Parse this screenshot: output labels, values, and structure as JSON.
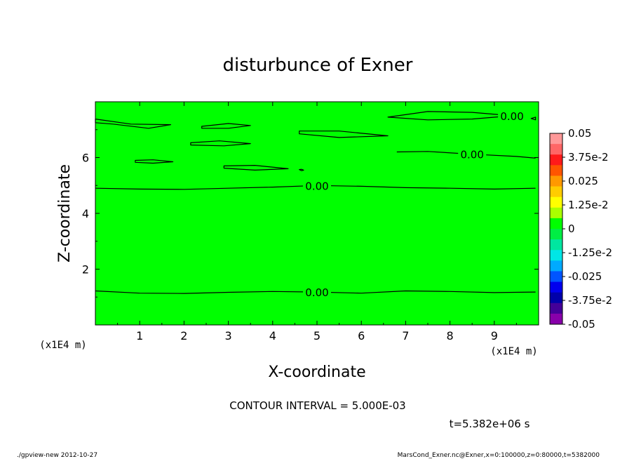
{
  "chart_data": {
    "type": "contour",
    "title": "disturbunce of Exner",
    "xlabel": "X-coordinate",
    "ylabel": "Z-coordinate",
    "x_unit_left": "(x1E4 m)",
    "x_unit_right": "(x1E4 m)",
    "xlim": [
      0,
      10
    ],
    "ylim": [
      0,
      8
    ],
    "x_ticks": [
      "1",
      "2",
      "3",
      "4",
      "5",
      "6",
      "7",
      "8",
      "9"
    ],
    "y_ticks": [
      "2",
      "4",
      "6"
    ],
    "fill_color": "#00ff00",
    "contour_label": "0.00",
    "contours": [
      {
        "label": "0.00",
        "labeled": true,
        "points": [
          [
            0,
            1.22
          ],
          [
            1,
            1.14
          ],
          [
            2,
            1.13
          ],
          [
            3,
            1.17
          ],
          [
            4,
            1.2
          ],
          [
            5,
            1.18
          ],
          [
            6,
            1.14
          ],
          [
            7,
            1.22
          ],
          [
            8,
            1.2
          ],
          [
            9,
            1.16
          ],
          [
            9.93,
            1.18
          ]
        ]
      },
      {
        "label": "0.00",
        "labeled": true,
        "points": [
          [
            0,
            4.9
          ],
          [
            1,
            4.87
          ],
          [
            2,
            4.86
          ],
          [
            3,
            4.9
          ],
          [
            4,
            4.94
          ],
          [
            5,
            5.0
          ],
          [
            6,
            4.97
          ],
          [
            7,
            4.92
          ],
          [
            8,
            4.9
          ],
          [
            9,
            4.87
          ],
          [
            9.93,
            4.9
          ]
        ]
      },
      {
        "label": "0.00",
        "labeled": true,
        "points": [
          [
            6.8,
            6.2
          ],
          [
            7.5,
            6.22
          ],
          [
            8.5,
            6.12
          ],
          [
            9.5,
            6.04
          ],
          [
            9.93,
            5.98
          ]
        ]
      },
      {
        "label": "0.00",
        "labeled": true,
        "closed": true,
        "points": [
          [
            6.6,
            7.45
          ],
          [
            7.5,
            7.65
          ],
          [
            8.5,
            7.62
          ],
          [
            9.4,
            7.5
          ],
          [
            8.5,
            7.38
          ],
          [
            7.5,
            7.35
          ]
        ]
      },
      {
        "closed": true,
        "points": [
          [
            0,
            7.38
          ],
          [
            0.8,
            7.2
          ],
          [
            1.7,
            7.18
          ],
          [
            1.2,
            7.05
          ],
          [
            0.4,
            7.2
          ],
          [
            0,
            7.25
          ]
        ]
      },
      {
        "closed": true,
        "points": [
          [
            2.4,
            7.12
          ],
          [
            3.0,
            7.22
          ],
          [
            3.5,
            7.15
          ],
          [
            3.0,
            7.05
          ],
          [
            2.4,
            7.05
          ]
        ]
      },
      {
        "closed": true,
        "points": [
          [
            2.15,
            6.53
          ],
          [
            2.8,
            6.6
          ],
          [
            3.5,
            6.5
          ],
          [
            2.9,
            6.42
          ],
          [
            2.15,
            6.45
          ]
        ]
      },
      {
        "closed": true,
        "points": [
          [
            4.6,
            6.95
          ],
          [
            5.5,
            6.95
          ],
          [
            6.6,
            6.78
          ],
          [
            5.5,
            6.72
          ],
          [
            4.6,
            6.85
          ]
        ]
      },
      {
        "closed": true,
        "points": [
          [
            0.9,
            5.9
          ],
          [
            1.3,
            5.92
          ],
          [
            1.75,
            5.85
          ],
          [
            1.3,
            5.8
          ],
          [
            0.9,
            5.83
          ]
        ]
      },
      {
        "closed": true,
        "points": [
          [
            2.9,
            5.7
          ],
          [
            3.6,
            5.72
          ],
          [
            4.35,
            5.6
          ],
          [
            3.6,
            5.55
          ],
          [
            2.9,
            5.62
          ]
        ]
      },
      {
        "closed": true,
        "points": [
          [
            4.6,
            5.57
          ],
          [
            4.65,
            5.58
          ],
          [
            4.7,
            5.55
          ],
          [
            4.65,
            5.53
          ]
        ]
      },
      {
        "closed": true,
        "points": [
          [
            9.83,
            7.4
          ],
          [
            9.93,
            7.45
          ],
          [
            9.93,
            7.35
          ]
        ]
      }
    ],
    "colorbar": {
      "labels": [
        "0.05",
        "3.75e-2",
        "0.025",
        "1.25e-2",
        "0",
        "-1.25e-2",
        "-0.025",
        "-3.75e-2",
        "-0.05"
      ],
      "colors": [
        "#ff9999",
        "#ff6666",
        "#ff1a1a",
        "#ff5500",
        "#ff9900",
        "#ffcc00",
        "#ffff00",
        "#aaff00",
        "#00ff00",
        "#00ee44",
        "#00e6a0",
        "#00e6e6",
        "#00aaff",
        "#0055ff",
        "#0000ee",
        "#0000aa",
        "#440099",
        "#8800aa"
      ]
    }
  },
  "annotations": {
    "contour_interval": "CONTOUR INTERVAL = 5.000E-03",
    "time": "t=5.382e+06 s"
  },
  "footer": {
    "left": "./gpview-new 2012-10-27",
    "right": "MarsCond_Exner.nc@Exner,x=0:100000,z=0:80000,t=5382000"
  }
}
